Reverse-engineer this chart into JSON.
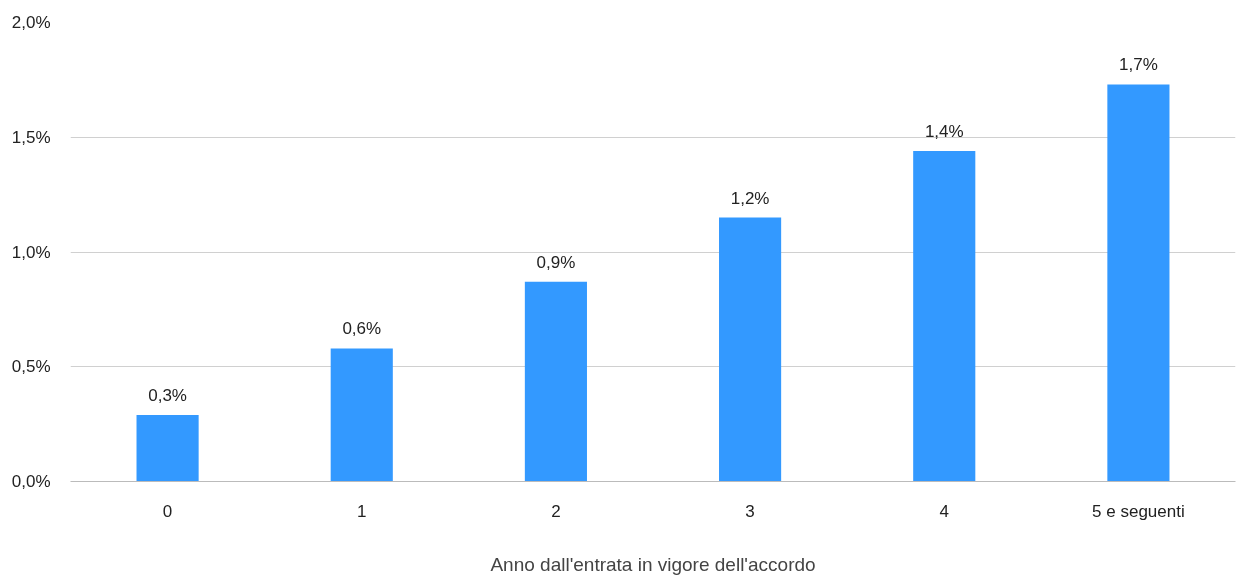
{
  "chart_data": {
    "type": "bar",
    "xlabel": "Anno dall'entrata in vigore dell'accordo",
    "categories": [
      "0",
      "1",
      "2",
      "3",
      "4",
      "5 e seguenti"
    ],
    "values": [
      0.29,
      0.58,
      0.87,
      1.15,
      1.44,
      1.73
    ],
    "value_labels": [
      "0,3%",
      "0,6%",
      "0,9%",
      "1,2%",
      "1,4%",
      "1,7%"
    ],
    "color": "#3399ff",
    "ylim": [
      0,
      2.0
    ],
    "yticks": [
      {
        "value": 0,
        "label": "0,0%"
      },
      {
        "value": 0.5,
        "label": "0,5%"
      },
      {
        "value": 1.0,
        "label": "1,0%"
      },
      {
        "value": 1.5,
        "label": "1,5%"
      },
      {
        "value": 2.0,
        "label": "2,0%"
      }
    ],
    "grid": "y"
  }
}
